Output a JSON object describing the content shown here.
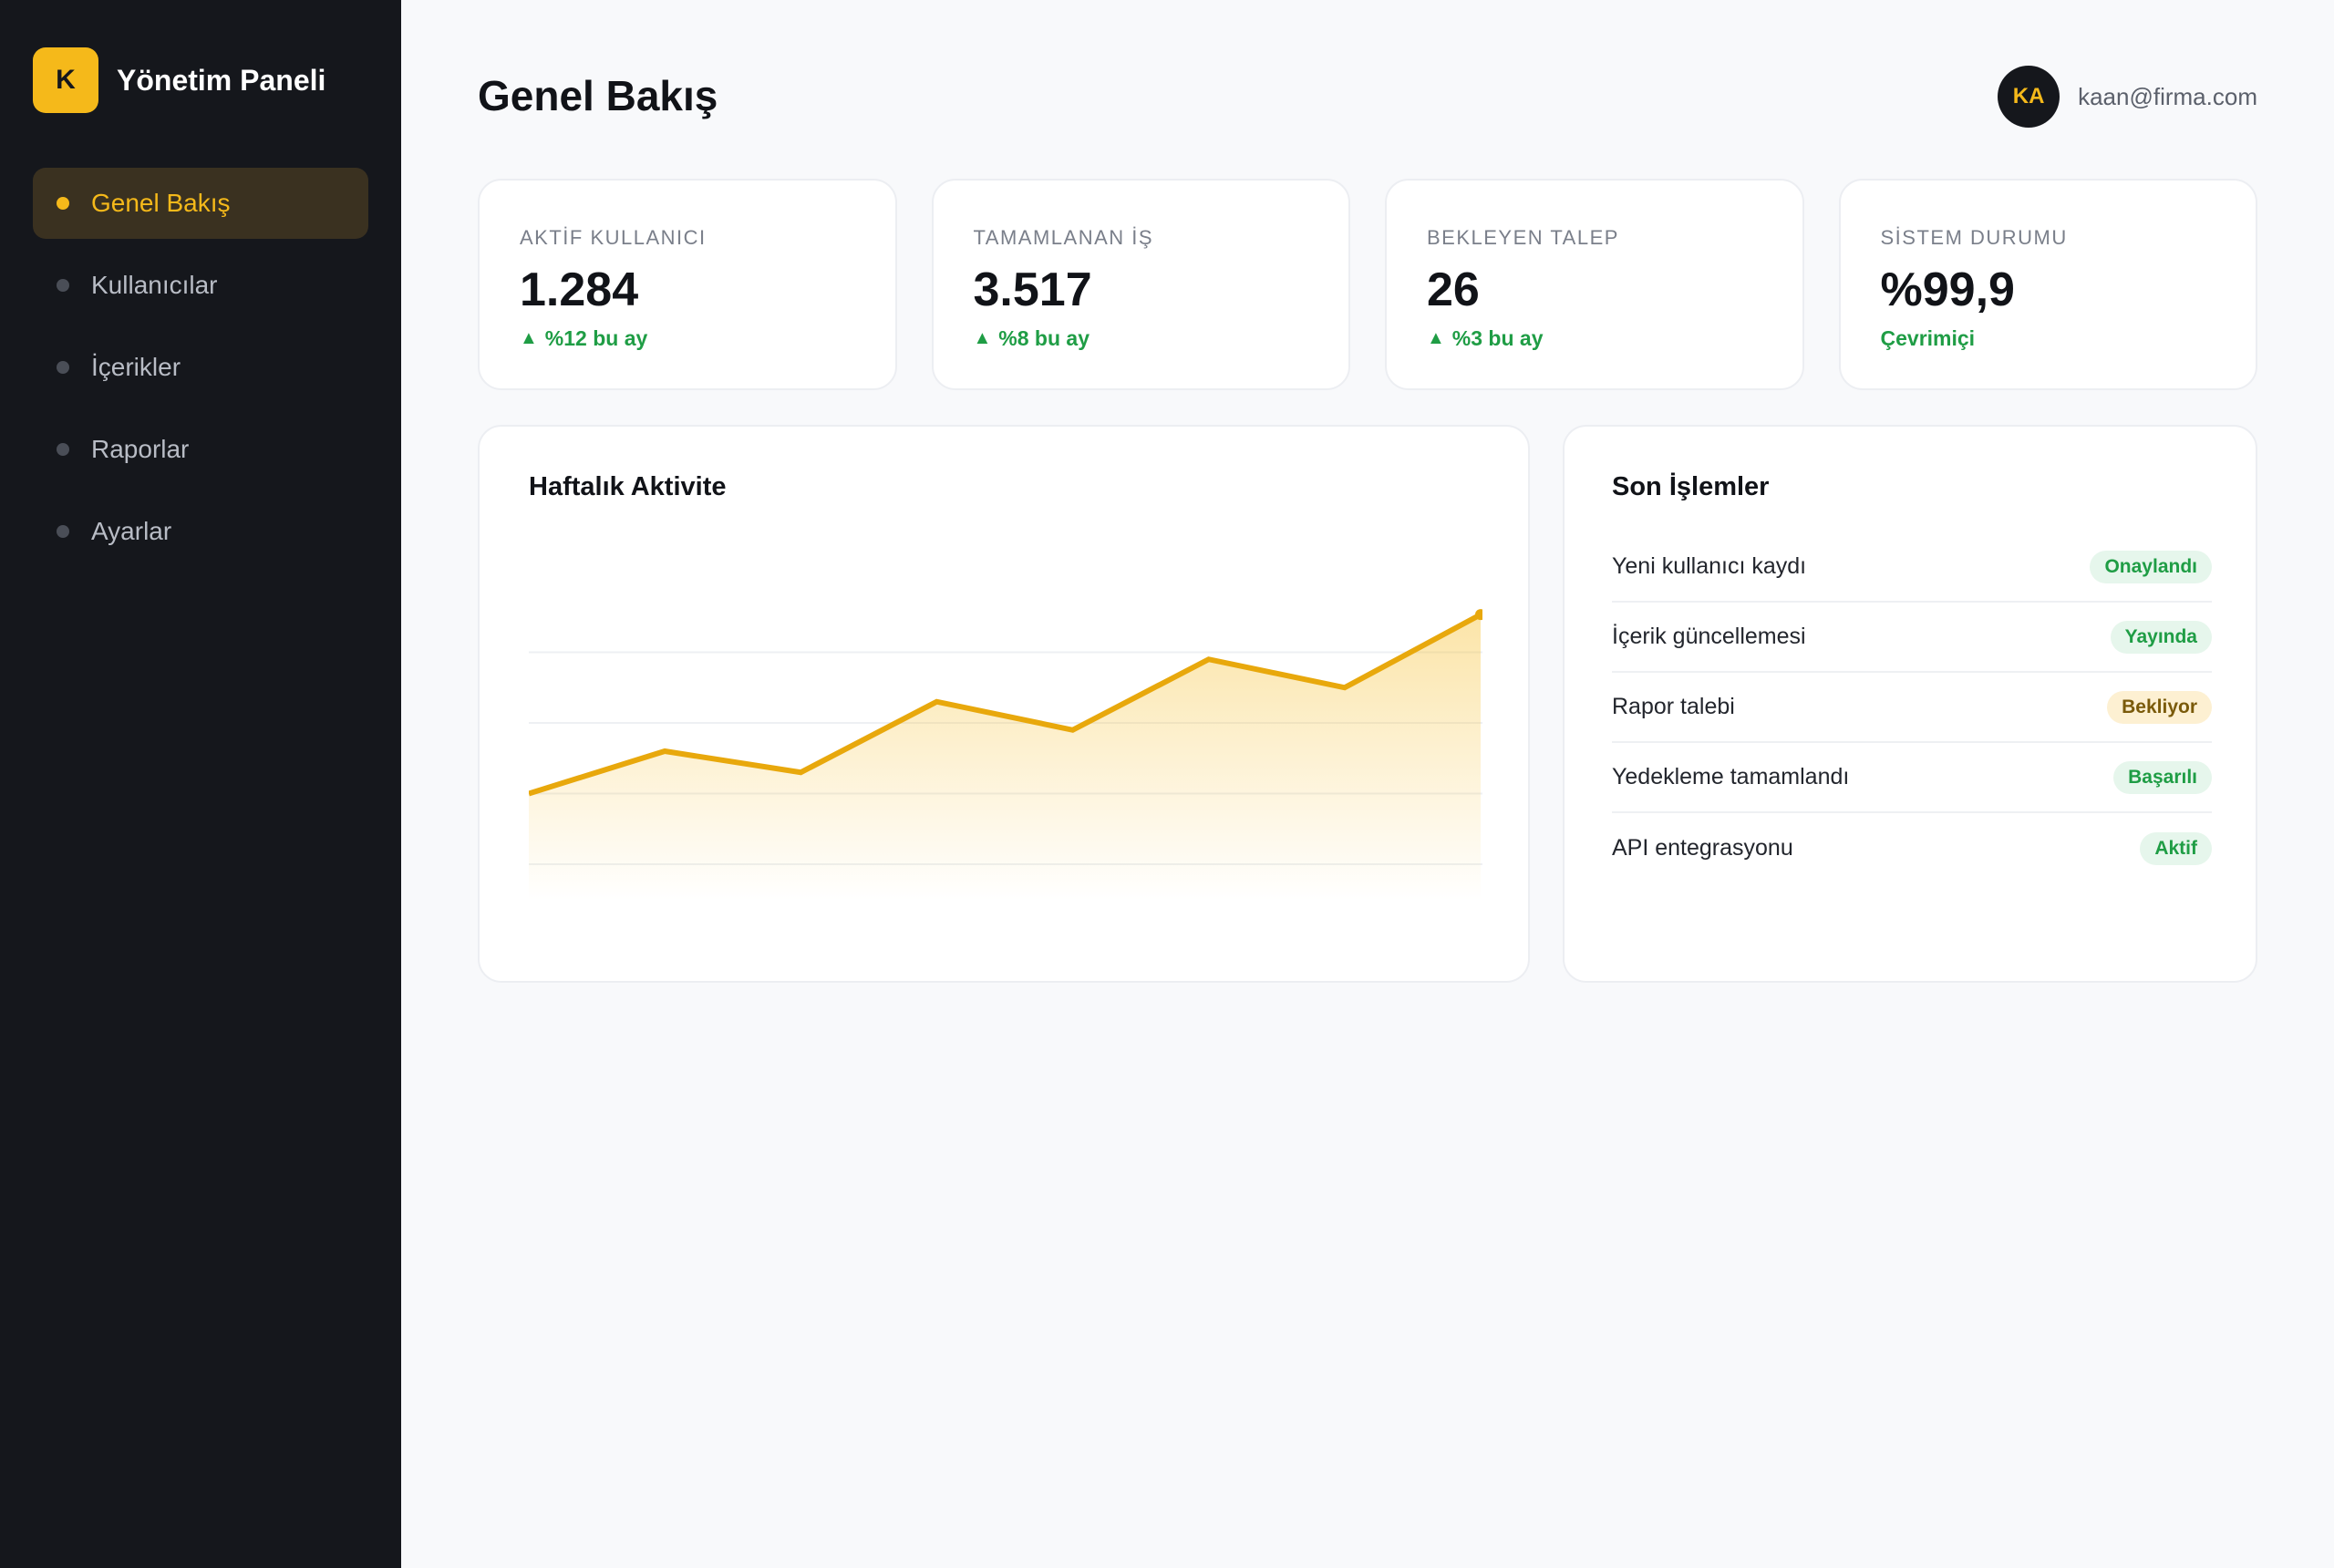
{
  "brand": {
    "logo_letter": "K",
    "title": "Yönetim Paneli",
    "accent": "#f5b91a"
  },
  "nav": {
    "items": [
      {
        "label": "Genel Bakış",
        "active": true
      },
      {
        "label": "Kullanıcılar",
        "active": false
      },
      {
        "label": "İçerikler",
        "active": false
      },
      {
        "label": "Raporlar",
        "active": false
      },
      {
        "label": "Ayarlar",
        "active": false
      }
    ]
  },
  "header": {
    "title": "Genel Bakış",
    "user": {
      "initials": "KA",
      "email": "kaan@firma.com"
    }
  },
  "stats": [
    {
      "label": "AKTİF KULLANICI",
      "value": "1.284",
      "change": "%12 bu ay",
      "arrow": "▲"
    },
    {
      "label": "TAMAMLANAN İŞ",
      "value": "3.517",
      "change": "%8 bu ay",
      "arrow": "▲"
    },
    {
      "label": "BEKLEYEN TALEP",
      "value": "26",
      "change": "%3 bu ay",
      "arrow": "▲"
    },
    {
      "label": "SİSTEM DURUMU",
      "value": "%99,9",
      "change": "Çevrimiçi",
      "arrow": ""
    }
  ],
  "chart_card": {
    "title": "Haftalık Aktivite"
  },
  "chart_data": {
    "type": "area",
    "title": "Haftalık Aktivite",
    "xlabel": "",
    "ylabel": "",
    "x": [
      1,
      2,
      3,
      4,
      5,
      6,
      7,
      8
    ],
    "values": [
      30,
      48,
      39,
      69,
      57,
      87,
      75,
      106
    ],
    "ylim": [
      0,
      120
    ],
    "grid": true,
    "color": "#e8a80c"
  },
  "activity_card": {
    "title": "Son İşlemler",
    "rows": [
      {
        "text": "Yeni kullanıcı kaydı",
        "status": "Onaylandı",
        "tone": "green"
      },
      {
        "text": "İçerik güncellemesi",
        "status": "Yayında",
        "tone": "green"
      },
      {
        "text": "Rapor talebi",
        "status": "Bekliyor",
        "tone": "amber"
      },
      {
        "text": "Yedekleme tamamlandı",
        "status": "Başarılı",
        "tone": "green"
      },
      {
        "text": "API entegrasyonu",
        "status": "Aktif",
        "tone": "green"
      }
    ]
  }
}
